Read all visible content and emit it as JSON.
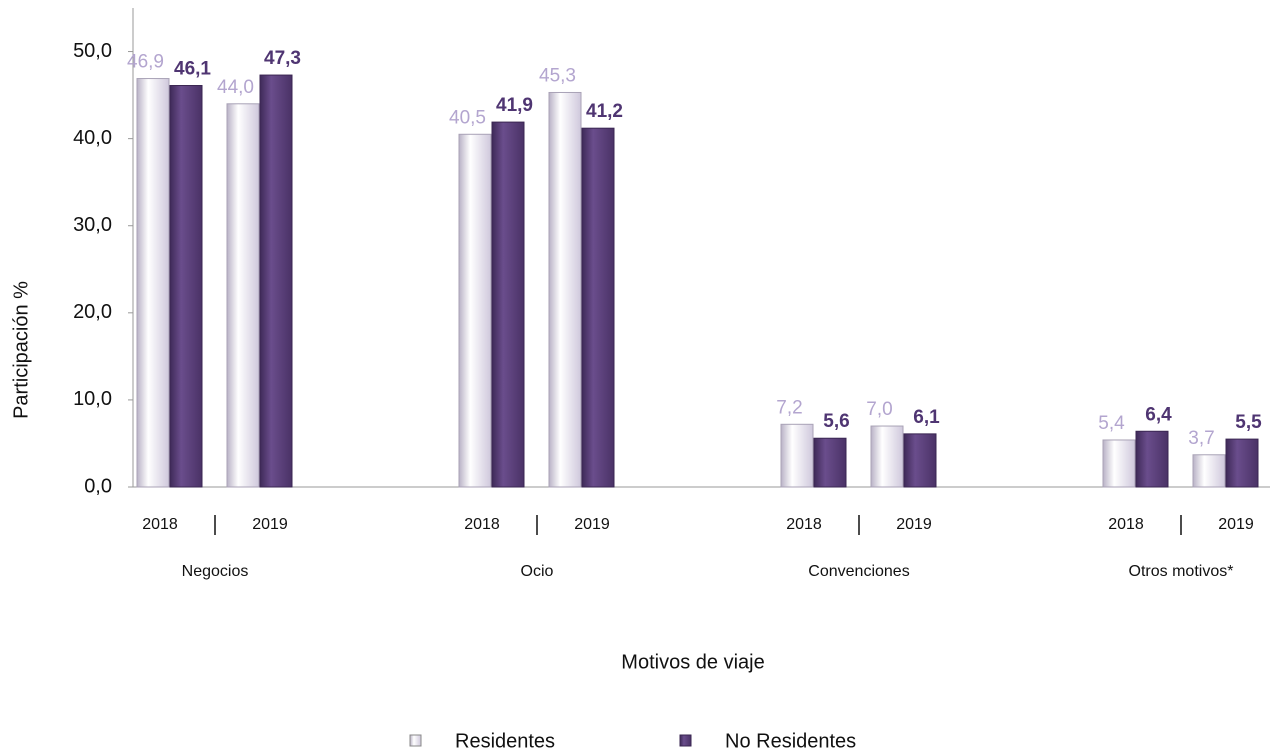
{
  "chart_data": {
    "type": "bar",
    "y_label": "Participación %",
    "x_label": "Motivos de viaje",
    "groups": [
      "Negocios",
      "Ocio",
      "Convenciones",
      "Otros motivos*"
    ],
    "categories": [
      "2018",
      "2019",
      "2018",
      "2019",
      "2018",
      "2019",
      "2018",
      "2019"
    ],
    "series": [
      {
        "name": "Residentes",
        "color": "#e6e1ee",
        "label_color": "#b3a5cf",
        "values": [
          46.9,
          44.0,
          40.5,
          45.3,
          7.2,
          7.0,
          5.4,
          3.7
        ],
        "value_labels": [
          "46,9",
          "44,0",
          "40,5",
          "45,3",
          "7,2",
          "7,0",
          "5,4",
          "3,7"
        ]
      },
      {
        "name": "No Residentes",
        "color": "#5b3f7c",
        "label_color": "#4f3572",
        "values": [
          46.1,
          47.3,
          41.9,
          41.2,
          5.6,
          6.1,
          6.4,
          5.5
        ],
        "value_labels": [
          "46,1",
          "47,3",
          "41,9",
          "41,2",
          "5,6",
          "6,1",
          "6,4",
          "5,5"
        ]
      }
    ],
    "ylim": [
      0,
      55
    ],
    "yticks": [
      {
        "value": 0,
        "label": "0,0"
      },
      {
        "value": 10,
        "label": "10,0"
      },
      {
        "value": 20,
        "label": "20,0"
      },
      {
        "value": 30,
        "label": "30,0"
      },
      {
        "value": 40,
        "label": "40,0"
      },
      {
        "value": 50,
        "label": "50,0"
      }
    ]
  }
}
